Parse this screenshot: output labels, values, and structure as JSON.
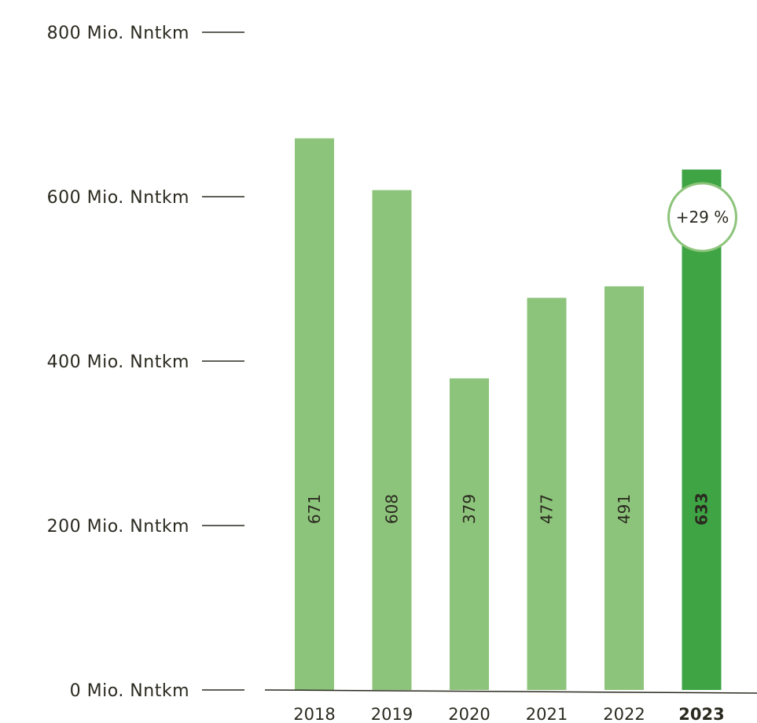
{
  "chart_data": {
    "type": "bar",
    "categories": [
      "2018",
      "2019",
      "2020",
      "2021",
      "2022",
      "2023"
    ],
    "values": [
      671,
      608,
      379,
      477,
      491,
      633
    ],
    "value_labels": [
      "671",
      "608",
      "379",
      "477",
      "491",
      "633"
    ],
    "highlight_index": 5,
    "ylim": [
      0,
      800
    ],
    "yticks": [
      {
        "value": 0,
        "label": "0 Mio. Nntkm"
      },
      {
        "value": 200,
        "label": "200 Mio. Nntkm"
      },
      {
        "value": 400,
        "label": "400 Mio. Nntkm"
      },
      {
        "value": 600,
        "label": "600 Mio. Nntkm"
      },
      {
        "value": 800,
        "label": "800 Mio. Nntkm"
      }
    ],
    "annotation": {
      "category": "2023",
      "text": "+29 %"
    },
    "grid": false,
    "legend": "none",
    "colors": {
      "bar": "#8dc47b",
      "bar_highlight": "#3ea444",
      "badge_border": "#8dc47b",
      "text": "#2b2a20",
      "axis": "#2b2a20"
    }
  }
}
